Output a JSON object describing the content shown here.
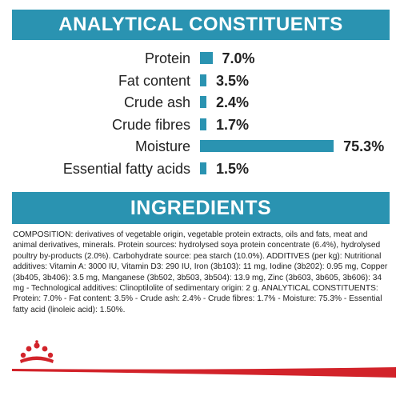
{
  "analytical": {
    "title": "ANALYTICAL CONSTITUENTS",
    "rows": [
      {
        "label": "Protein",
        "value": "7.0%",
        "percent": 7.0
      },
      {
        "label": "Fat content",
        "value": "3.5%",
        "percent": 3.5
      },
      {
        "label": "Crude ash",
        "value": "2.4%",
        "percent": 2.4
      },
      {
        "label": "Crude fibres",
        "value": "1.7%",
        "percent": 1.7
      },
      {
        "label": "Moisture",
        "value": "75.3%",
        "percent": 75.3
      },
      {
        "label": "Essential fatty acids",
        "value": "1.5%",
        "percent": 1.5
      }
    ]
  },
  "ingredients": {
    "title": "INGREDIENTS",
    "text": "COMPOSITION: derivatives of vegetable origin, vegetable protein extracts, oils and fats, meat and animal derivatives, minerals. Protein sources: hydrolysed soya protein concentrate (6.4%), hydrolysed poultry by-products (2.0%). Carbohydrate source: pea starch (10.0%). ADDITIVES (per kg): Nutritional additives: Vitamin A: 3000 IU, Vitamin D3: 290 IU, Iron (3b103): 11 mg, Iodine (3b202): 0.95 mg, Copper (3b405, 3b406): 3.5 mg, Manganese (3b502, 3b503, 3b504): 13.9 mg, Zinc (3b603, 3b605, 3b606): 34 mg - Technological additives: Clinoptilolite of sedimentary origin: 2 g. ANALYTICAL CONSTITUENTS: Protein: 7.0% - Fat content: 3.5% - Crude ash: 2.4% - Crude fibres: 1.7% - Moisture: 75.3% - Essential fatty acid (linoleic acid): 1.50%."
  },
  "brand": {
    "logo_icon": "crown-icon",
    "accent": "#2a93b1",
    "brand_red": "#d2232a"
  }
}
